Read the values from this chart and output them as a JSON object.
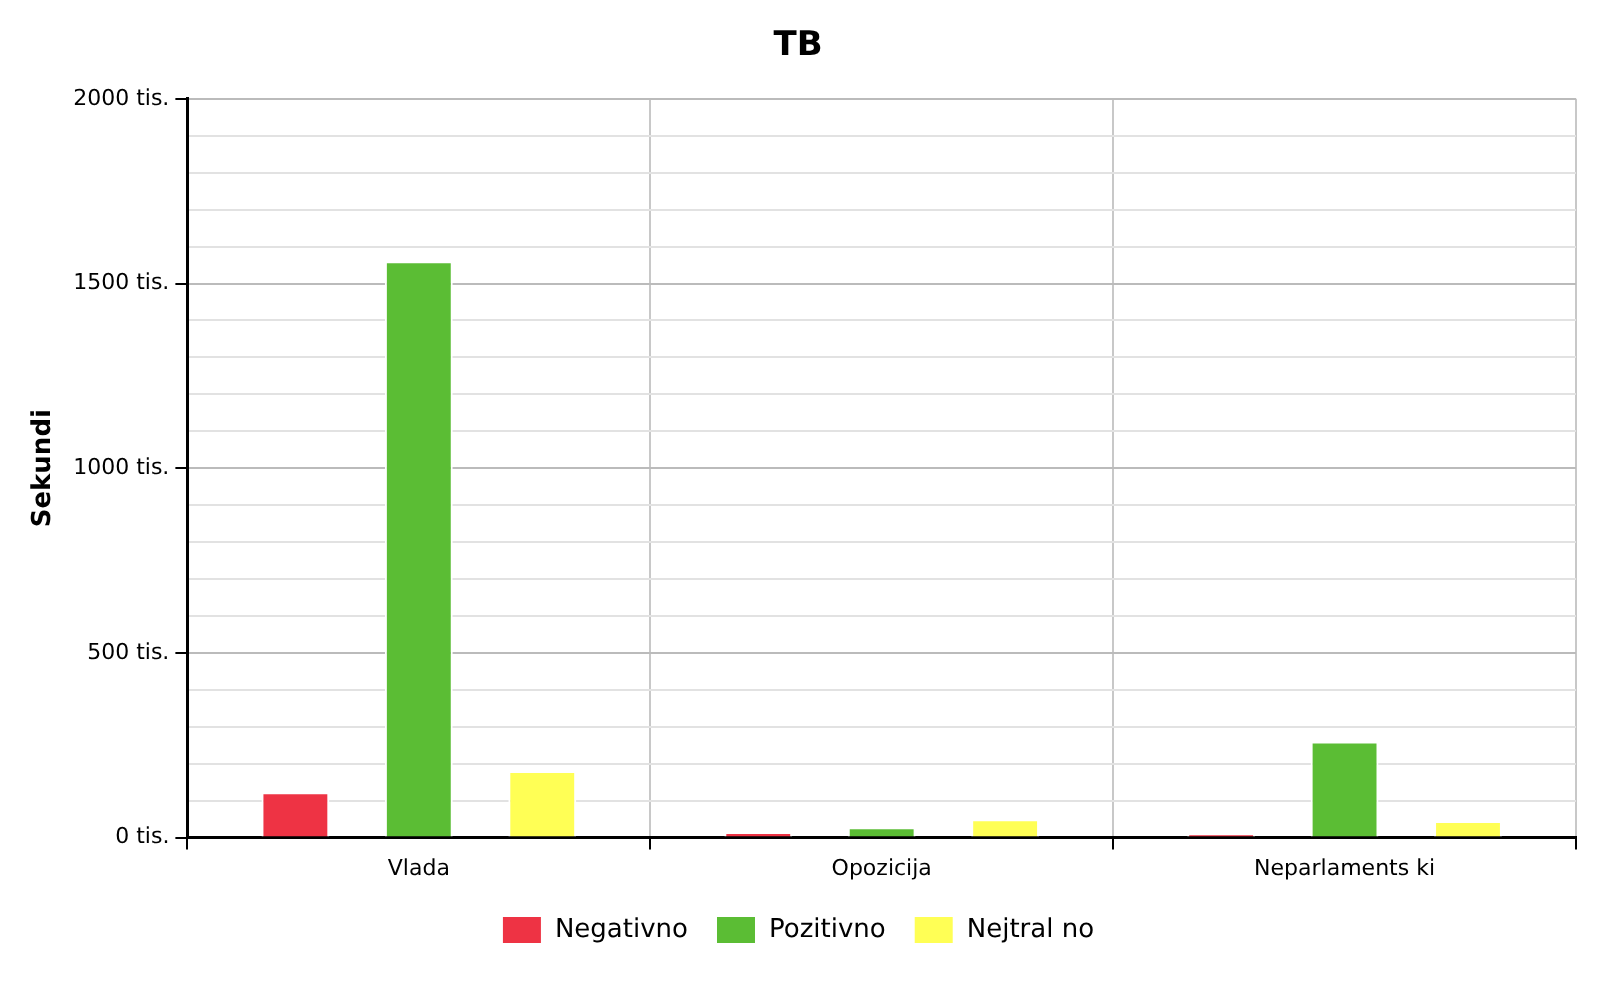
{
  "chart_data": {
    "type": "bar",
    "title": "TB",
    "ylabel": "Sekundi",
    "categories": [
      "Vlada",
      "Opozicija",
      "Neparlaments ki"
    ],
    "series": [
      {
        "name": "Negativno",
        "color": "#ee3344",
        "values": [
          123,
          15,
          10
        ]
      },
      {
        "name": "Pozitivno",
        "color": "#5bbd34",
        "values": [
          1560,
          28,
          260
        ]
      },
      {
        "name": "Nejtral no",
        "color": "#ffff55",
        "values": [
          180,
          50,
          45
        ]
      }
    ],
    "ylim": [
      0,
      2000
    ],
    "yticks": [
      {
        "value": 0,
        "label": "0 tis."
      },
      {
        "value": 100,
        "label": null
      },
      {
        "value": 200,
        "label": null
      },
      {
        "value": 300,
        "label": null
      },
      {
        "value": 400,
        "label": null
      },
      {
        "value": 500,
        "label": "500 tis."
      },
      {
        "value": 600,
        "label": null
      },
      {
        "value": 700,
        "label": null
      },
      {
        "value": 800,
        "label": null
      },
      {
        "value": 900,
        "label": null
      },
      {
        "value": 1000,
        "label": "1000 tis."
      },
      {
        "value": 1100,
        "label": null
      },
      {
        "value": 1200,
        "label": null
      },
      {
        "value": 1300,
        "label": null
      },
      {
        "value": 1400,
        "label": null
      },
      {
        "value": 1500,
        "label": "1500 tis."
      },
      {
        "value": 1600,
        "label": null
      },
      {
        "value": 1700,
        "label": null
      },
      {
        "value": 1800,
        "label": null
      },
      {
        "value": 1900,
        "label": null
      },
      {
        "value": 2000,
        "label": "2000 tis."
      }
    ],
    "grid": true,
    "legend": "bottom"
  }
}
